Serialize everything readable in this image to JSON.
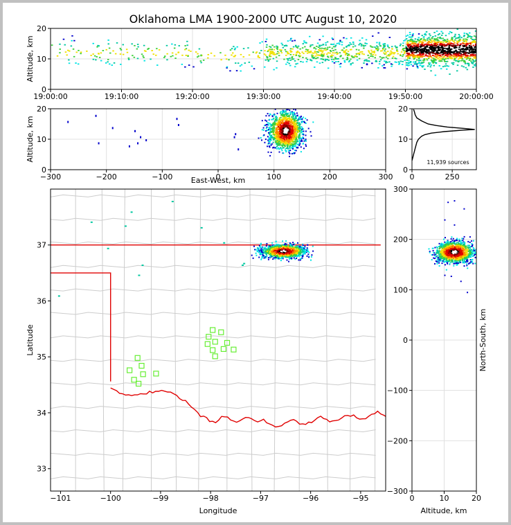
{
  "chart_data": [
    {
      "type": "heatmap",
      "name": "altitude-vs-time",
      "title": "Oklahoma LMA 1900-2000 UTC August 10, 2020",
      "ylabel": "Altitude, km",
      "xlim_minutes": [
        0,
        60
      ],
      "ylim": [
        0,
        20
      ],
      "x_ticks": [
        {
          "v": 0,
          "label": "19:00:00"
        },
        {
          "v": 10,
          "label": "19:10:00"
        },
        {
          "v": 20,
          "label": "19:20:00"
        },
        {
          "v": 30,
          "label": "19:30:00"
        },
        {
          "v": 40,
          "label": "19:40:00"
        },
        {
          "v": 50,
          "label": "19:50:00"
        },
        {
          "v": 60,
          "label": "20:00:00"
        }
      ],
      "y_ticks": [
        0,
        10,
        20
      ],
      "density_by_10min": [
        {
          "interval": "19:00-19:10",
          "center_altitude_km": 12,
          "density": "sparse"
        },
        {
          "interval": "19:10-19:20",
          "center_altitude_km": 12,
          "density": "sparse"
        },
        {
          "interval": "19:20-19:30",
          "center_altitude_km": 11,
          "density": "sparse"
        },
        {
          "interval": "19:30-19:40",
          "center_altitude_km": 12,
          "density": "moderate"
        },
        {
          "interval": "19:40-19:50",
          "center_altitude_km": 12,
          "density": "moderate"
        },
        {
          "interval": "19:50-20:00",
          "center_altitude_km": 13,
          "density": "dense"
        }
      ]
    },
    {
      "type": "heatmap",
      "name": "altitude-vs-east-west",
      "xlabel": "East-West, km",
      "ylabel": "Altitude, km",
      "xlim": [
        -300,
        300
      ],
      "ylim": [
        0,
        20
      ],
      "x_ticks": [
        -300,
        -200,
        -100,
        0,
        100,
        200,
        300
      ],
      "y_ticks": [
        0,
        10,
        20
      ],
      "main_cell": {
        "east_west_km": [
          75,
          145
        ],
        "altitude_km": [
          4,
          20
        ],
        "core_east_west_km": 120,
        "core_altitude_km": 13
      }
    },
    {
      "type": "line",
      "name": "altitude-histogram",
      "xlim": [
        0,
        400
      ],
      "ylim": [
        0,
        20
      ],
      "x_ticks": [
        0,
        250
      ],
      "y_ticks": [
        0,
        10,
        20
      ],
      "annotation": "11,939 sources",
      "x": [
        0,
        5,
        10,
        15,
        20,
        25,
        30,
        40,
        50,
        60,
        80,
        120,
        200,
        320,
        390,
        330,
        220,
        150,
        100,
        60,
        30,
        20,
        15,
        10
      ],
      "y": [
        3,
        4,
        5,
        6,
        7,
        8,
        9,
        10,
        10.5,
        11,
        11.5,
        12,
        12.5,
        13,
        13.2,
        13.5,
        14,
        14.5,
        15,
        16,
        17,
        18,
        19,
        19.8
      ]
    },
    {
      "type": "scatter",
      "name": "plan-view-map",
      "xlabel": "Longitude",
      "ylabel": "Latitude",
      "xlim": [
        -101.2,
        -94.5
      ],
      "ylim": [
        32.6,
        38.0
      ],
      "x_ticks": [
        {
          "v": -101,
          "label": "−101"
        },
        {
          "v": -100,
          "label": "−100"
        },
        {
          "v": -99,
          "label": "−99"
        },
        {
          "v": -98,
          "label": "−98"
        },
        {
          "v": -97,
          "label": "−97"
        },
        {
          "v": -96,
          "label": "−96"
        },
        {
          "v": -95,
          "label": "−95"
        }
      ],
      "y_ticks": [
        33,
        34,
        35,
        36,
        37
      ],
      "main_cell": {
        "lon": [
          -97.15,
          -96.25
        ],
        "lat": [
          36.8,
          37.05
        ],
        "core_lon": -96.55,
        "core_lat": 36.9
      },
      "stations": [
        {
          "lon": -97.96,
          "lat": 35.48
        },
        {
          "lon": -97.79,
          "lat": 35.44
        },
        {
          "lon": -98.04,
          "lat": 35.36
        },
        {
          "lon": -97.91,
          "lat": 35.27
        },
        {
          "lon": -98.06,
          "lat": 35.23
        },
        {
          "lon": -97.67,
          "lat": 35.25
        },
        {
          "lon": -97.96,
          "lat": 35.12
        },
        {
          "lon": -97.74,
          "lat": 35.14
        },
        {
          "lon": -97.54,
          "lat": 35.13
        },
        {
          "lon": -97.91,
          "lat": 35.01
        },
        {
          "lon": -99.46,
          "lat": 34.98
        },
        {
          "lon": -99.38,
          "lat": 34.84
        },
        {
          "lon": -99.62,
          "lat": 34.76
        },
        {
          "lon": -99.35,
          "lat": 34.69
        },
        {
          "lon": -99.09,
          "lat": 34.7
        },
        {
          "lon": -99.53,
          "lat": 34.59
        },
        {
          "lon": -99.44,
          "lat": 34.52
        }
      ]
    },
    {
      "type": "heatmap",
      "name": "north-south-vs-altitude",
      "xlabel": "Altitude, km",
      "ylabel": "North-South, km",
      "xlim": [
        0,
        20
      ],
      "ylim": [
        -300,
        300
      ],
      "x_ticks": [
        0,
        10,
        20
      ],
      "y_ticks": [
        {
          "v": 300,
          "label": "300"
        },
        {
          "v": 200,
          "label": "200"
        },
        {
          "v": 100,
          "label": "100"
        },
        {
          "v": 0,
          "label": "0"
        },
        {
          "v": -100,
          "label": "−100"
        },
        {
          "v": -200,
          "label": "−200"
        },
        {
          "v": -300,
          "label": "−300"
        }
      ],
      "main_cell": {
        "altitude_km": [
          3,
          20
        ],
        "north_south_km": [
          150,
          200
        ],
        "core_altitude_km": 13,
        "core_north_south_km": 176
      }
    }
  ]
}
